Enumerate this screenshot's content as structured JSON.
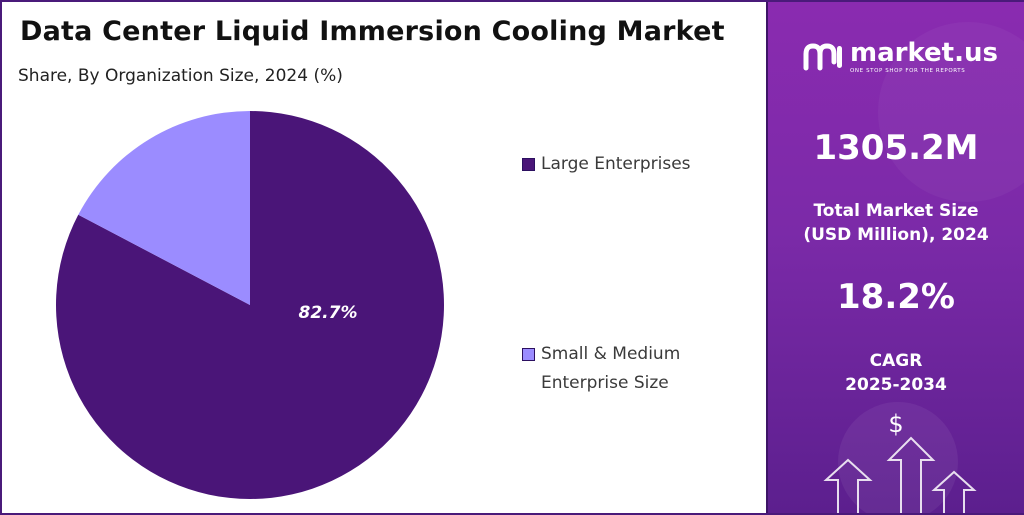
{
  "chart_data": {
    "type": "pie",
    "title": "Data Center Liquid Immersion Cooling Market",
    "subtitle": "Share, By Organization Size, 2024 (%)",
    "categories": [
      "Large Enterprises",
      "Small & Medium Enterprise Size"
    ],
    "values": [
      82.7,
      17.3
    ],
    "data_labels": [
      "82.7%",
      ""
    ],
    "legend": [
      "Large Enterprises",
      "Small & Medium Enterprise Size"
    ],
    "legend_lines": [
      [
        "Large Enterprises"
      ],
      [
        "Small & Medium",
        "Enterprise Size"
      ]
    ],
    "legend_position": "right",
    "colors": [
      "#4a1578",
      "#9b8cff"
    ]
  },
  "sidebar": {
    "logo_name": "market.us",
    "logo_tagline": "ONE STOP SHOP FOR THE REPORTS",
    "market_size_value": "1305.2M",
    "market_size_label_1": "Total Market Size",
    "market_size_label_2": "(USD Million), 2024",
    "cagr_value": "18.2%",
    "cagr_label_1": "CAGR",
    "cagr_label_2": "2025-2034",
    "currency_symbol": "$"
  },
  "colors": {
    "frame": "#4a1a7a",
    "sidebar_top": "#8a2bb0",
    "sidebar_bottom": "#5c1f8e"
  }
}
